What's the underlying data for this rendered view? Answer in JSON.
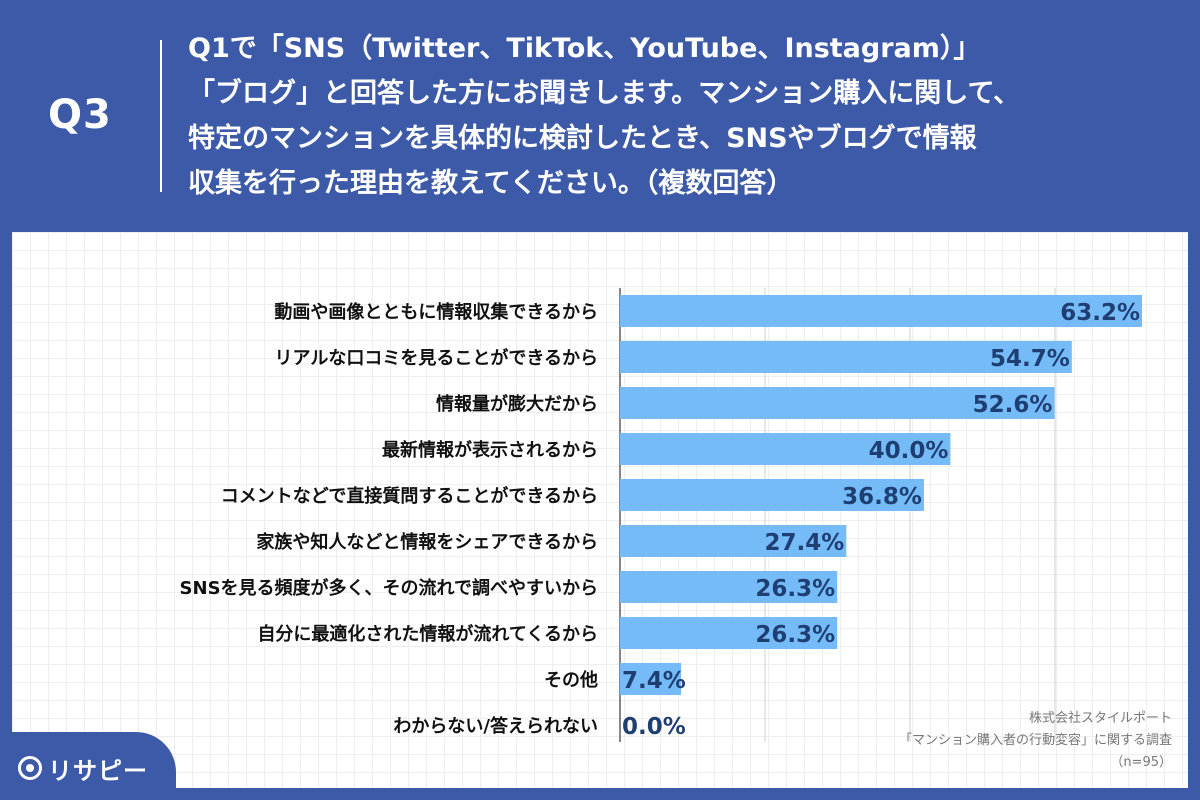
{
  "question": {
    "label": "Q3",
    "text": "Q1で「SNS（Twitter、TikTok、YouTube、Instagram）」\n「ブログ」と回答した方にお聞きします。マンション購入に関して、\n特定のマンションを具体的に検討したとき、SNSやブログで情報\n収集を行った理由を教えてください。（複数回答）"
  },
  "colors": {
    "background": "#3d5aa8",
    "bar": "#74bbf7",
    "value_text": "#1f3f73",
    "label_text": "#111111"
  },
  "chart_data": {
    "type": "bar",
    "orientation": "horizontal",
    "categories": [
      "動画や画像とともに情報収集できるから",
      "リアルな口コミを見ることができるから",
      "情報量が膨大だから",
      "最新情報が表示されるから",
      "コメントなどで直接質問することができるから",
      "家族や知人などと情報をシェアできるから",
      "SNSを見る頻度が多く、その流れで調べやすいから",
      "自分に最適化された情報が流れてくるから",
      "その他",
      "わからない/答えられない"
    ],
    "values": [
      63.2,
      54.7,
      52.6,
      40.0,
      36.8,
      27.4,
      26.3,
      26.3,
      7.4,
      0.0
    ],
    "value_labels": [
      "63.2%",
      "54.7%",
      "52.6%",
      "40.0%",
      "36.8%",
      "27.4%",
      "26.3%",
      "26.3%",
      "7.4%",
      "0.0%"
    ],
    "xlim": [
      0,
      63.2
    ],
    "grid": true
  },
  "source": {
    "company": "株式会社スタイルポート",
    "survey": "「マンション購入者の行動変容」に関する調査",
    "n": "（n=95）"
  },
  "brand": {
    "name": "リサピー",
    "icon": "magnifier-logo-icon"
  }
}
